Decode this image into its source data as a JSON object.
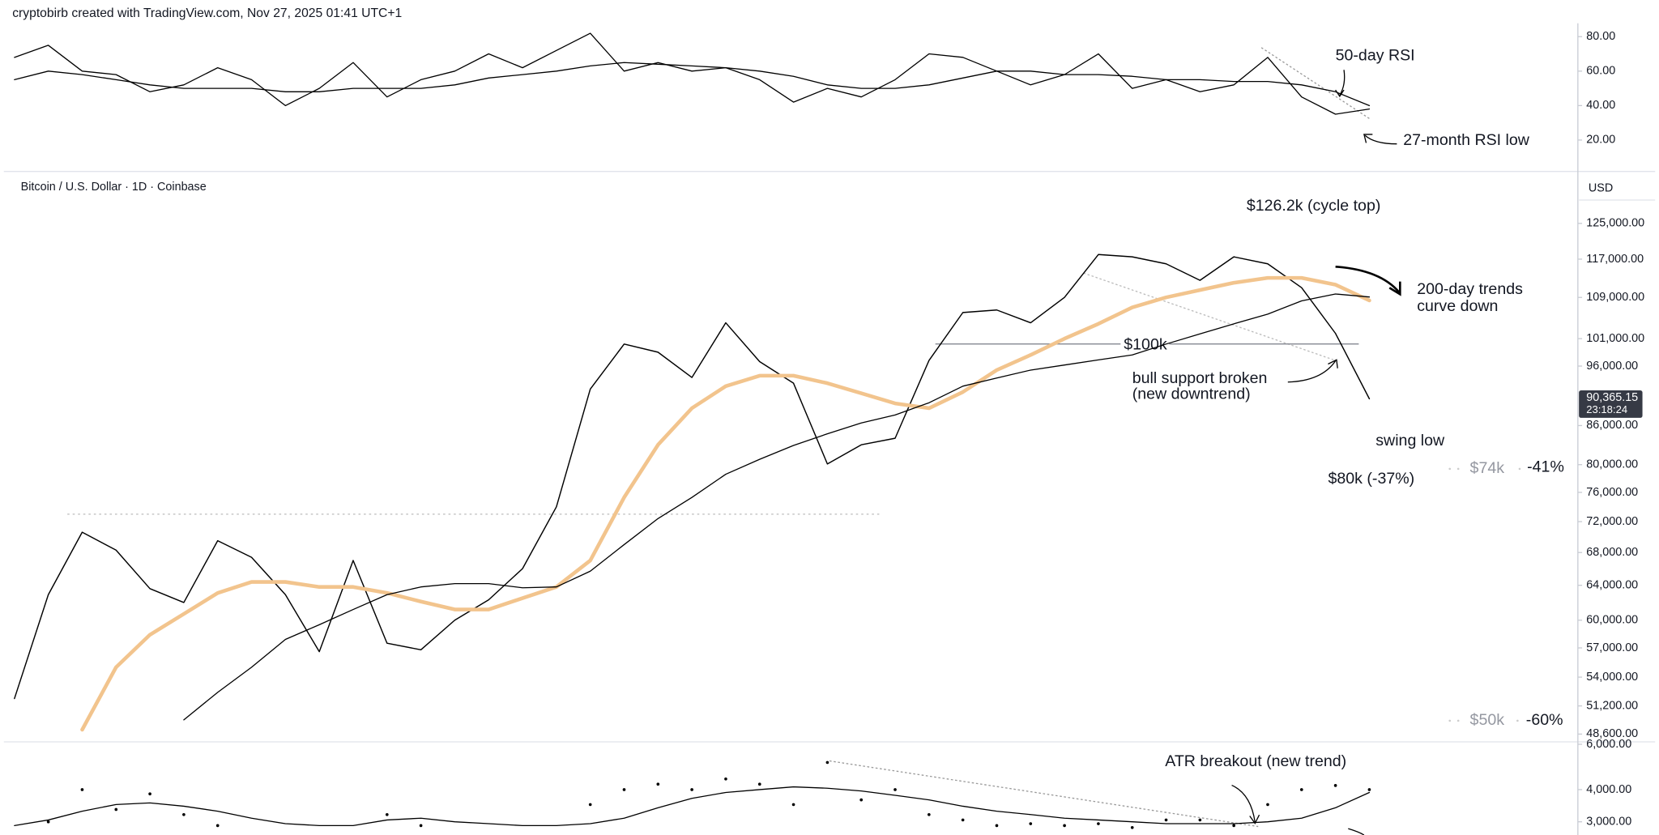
{
  "header": "cryptobirb created with TradingView.com, Nov 27, 2025 01:41 UTC+1",
  "chart_data": [
    {
      "type": "line",
      "ylim": [
        3,
        89
      ],
      "yticks": [
        {
          "value": 80,
          "label": "80.00"
        },
        {
          "value": 60,
          "label": "60.00"
        },
        {
          "value": 40,
          "label": "40.00"
        },
        {
          "value": 20,
          "label": "20.00"
        }
      ],
      "series": [
        {
          "color": "#000000",
          "values": [
            68,
            75,
            60,
            58,
            48,
            52,
            62,
            55,
            40,
            50,
            65,
            45,
            55,
            60,
            70,
            62,
            72,
            82,
            60,
            65,
            60,
            62,
            55,
            42,
            50,
            45,
            55,
            70,
            68,
            60,
            52,
            58,
            70,
            50,
            55,
            48,
            52,
            68,
            45,
            35,
            38
          ]
        },
        {
          "color": "#000000",
          "values": [
            55,
            60,
            58,
            55,
            52,
            50,
            50,
            50,
            48,
            48,
            50,
            50,
            50,
            52,
            56,
            58,
            60,
            63,
            65,
            64,
            63,
            62,
            60,
            57,
            52,
            50,
            50,
            52,
            56,
            60,
            60,
            58,
            58,
            57,
            55,
            55,
            54,
            54,
            52,
            48,
            40
          ]
        }
      ],
      "annotations": [
        "50-day RSI",
        "27-month RSI low"
      ]
    },
    {
      "type": "line",
      "title": "Bitcoin / U.S. Dollar · 1D · Coinbase",
      "unit": "USD",
      "log_scale": true,
      "ylim": [
        48000,
        136800
      ],
      "yticks": [
        {
          "value": 125000,
          "label": "125,000.00"
        },
        {
          "value": 117000,
          "label": "117,000.00"
        },
        {
          "value": 109000,
          "label": "109,000.00"
        },
        {
          "value": 101000,
          "label": "101,000.00"
        },
        {
          "value": 96000,
          "label": "96,000.00"
        },
        {
          "value": 86000,
          "label": "86,000.00"
        },
        {
          "value": 80000,
          "label": "80,000.00"
        },
        {
          "value": 76000,
          "label": "76,000.00"
        },
        {
          "value": 72000,
          "label": "72,000.00"
        },
        {
          "value": 68000,
          "label": "68,000.00"
        },
        {
          "value": 64000,
          "label": "64,000.00"
        },
        {
          "value": 60000,
          "label": "60,000.00"
        },
        {
          "value": 57000,
          "label": "57,000.00"
        },
        {
          "value": 54000,
          "label": "54,000.00"
        },
        {
          "value": 51200,
          "label": "51,200.00"
        },
        {
          "value": 48600,
          "label": "48,600.00"
        }
      ],
      "series": [
        {
          "color": "#000000",
          "values": [
            51900,
            62900,
            70600,
            68300,
            63600,
            62000,
            69500,
            67400,
            62900,
            56600,
            67000,
            57500,
            56800,
            60000,
            62300,
            66000,
            74000,
            92000,
            100000,
            98500,
            94000,
            104000,
            96800,
            93000,
            80100,
            83000,
            84000,
            97000,
            106000,
            106500,
            104000,
            109000,
            118000,
            117500,
            116000,
            112500,
            117500,
            116000,
            111000,
            102000,
            90365
          ]
        },
        {
          "color": "#f2c48d",
          "values": [
            null,
            null,
            49000,
            55000,
            58400,
            60700,
            63100,
            64400,
            64400,
            63800,
            63800,
            63100,
            62100,
            61200,
            61200,
            62500,
            63800,
            67000,
            75300,
            83000,
            88800,
            92500,
            94300,
            94300,
            93000,
            91300,
            89600,
            88800,
            91500,
            95300,
            98000,
            101000,
            103800,
            107000,
            109000,
            110500,
            112000,
            113000,
            113000,
            111600,
            108400
          ]
        },
        {
          "color": "#000000",
          "values": [
            null,
            null,
            null,
            null,
            null,
            49900,
            52500,
            55000,
            57900,
            59500,
            61200,
            62900,
            63800,
            64200,
            64200,
            63700,
            63800,
            65700,
            69000,
            72400,
            75300,
            78600,
            80800,
            82900,
            84700,
            86400,
            87700,
            89700,
            92500,
            93900,
            95300,
            96200,
            97100,
            98000,
            100000,
            101900,
            103800,
            105700,
            108300,
            109700,
            109100
          ]
        }
      ],
      "support_line": {
        "value": 100000,
        "label": "$100k"
      },
      "reference_line": 73000,
      "last_price": {
        "value": 90365.15,
        "label": "90,365.15"
      },
      "countdown": "23:18:24",
      "annotations": [
        "$126.2k (cycle top)",
        "200-day trends",
        "curve down",
        "bull support broken",
        "(new downtrend)",
        "swing low",
        "$80k (-37%)",
        "$74k",
        "-41%",
        "$50k",
        "-60%"
      ]
    },
    {
      "type": "line",
      "log_scale": true,
      "ylim": [
        2666,
        6130
      ],
      "yticks": [
        {
          "value": 6000,
          "label": "6,000.00"
        },
        {
          "value": 4000,
          "label": "4,000.00"
        },
        {
          "value": 3000,
          "label": "3,000.00"
        }
      ],
      "series": [
        {
          "color": "#000000",
          "marker": "dot",
          "values": [
            null,
            3000,
            4000,
            3350,
            3850,
            3200,
            2900,
            null,
            null,
            null,
            null,
            3200,
            2900,
            null,
            null,
            null,
            null,
            3500,
            4000,
            4200,
            4000,
            4400,
            4200,
            3500,
            5100,
            3650,
            4000,
            3200,
            3050,
            2900,
            2950,
            2900,
            2950,
            2850,
            3050,
            3050,
            2900,
            3500,
            4000,
            4150,
            4000
          ]
        },
        {
          "color": "#000000",
          "values": [
            2900,
            3050,
            3300,
            3500,
            3550,
            3450,
            3300,
            3100,
            2950,
            2900,
            2900,
            3050,
            3100,
            3000,
            2950,
            2900,
            2900,
            2950,
            3100,
            3400,
            3700,
            3900,
            4000,
            4100,
            4050,
            3950,
            3800,
            3650,
            3450,
            3300,
            3200,
            3100,
            3050,
            3000,
            2950,
            2950,
            2950,
            3000,
            3100,
            3400,
            3900
          ]
        }
      ],
      "annotations": [
        "ATR breakout (new trend)"
      ]
    }
  ]
}
